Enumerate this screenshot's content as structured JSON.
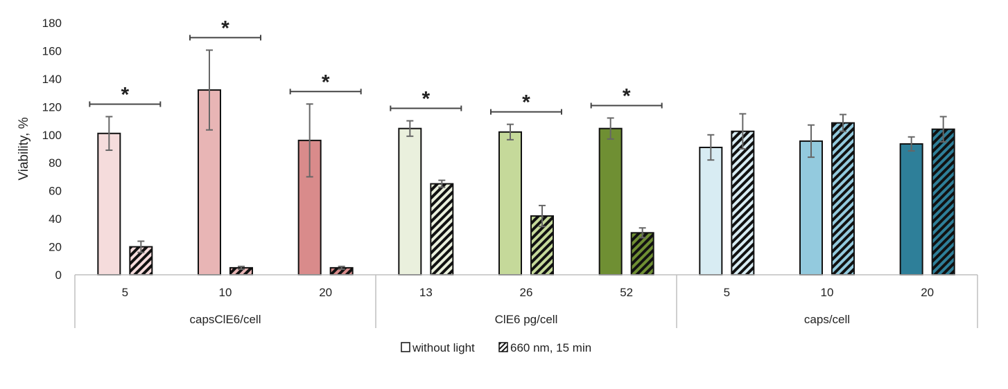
{
  "chart_data": {
    "type": "bar",
    "ylabel": "Viability, %",
    "xlabel": "",
    "ylim": [
      0,
      180
    ],
    "yticks": [
      0,
      20,
      40,
      60,
      80,
      100,
      120,
      140,
      160,
      180
    ],
    "grid": false,
    "legend_position": "bottom-center",
    "groups": [
      {
        "label": "capsClE6/cell",
        "categories": [
          "5",
          "10",
          "20"
        ]
      },
      {
        "label": "ClE6 pg/cell",
        "categories": [
          "13",
          "26",
          "52"
        ]
      },
      {
        "label": "caps/cell",
        "categories": [
          "5",
          "10",
          "20"
        ]
      }
    ],
    "series": [
      {
        "name": "without light",
        "pattern": "solid",
        "values": [
          101,
          132,
          96,
          104.5,
          102,
          104.5,
          91,
          95.5,
          93.5
        ],
        "errors": [
          12,
          28.5,
          26,
          5.5,
          5.5,
          7.5,
          9,
          11.5,
          5
        ]
      },
      {
        "name": "660 nm, 15 min",
        "pattern": "hatched",
        "values": [
          20,
          5,
          5,
          65,
          42,
          30,
          102.5,
          108.5,
          104
        ],
        "errors": [
          4,
          1,
          1,
          2.5,
          7.5,
          3.5,
          12.5,
          6,
          9
        ]
      }
    ],
    "colors": [
      "#f5dcdc",
      "#e8b5b5",
      "#d98b8b",
      "#eaf0dd",
      "#c5d99a",
      "#6f8f33",
      "#d8ecf3",
      "#93cade",
      "#2e7f99"
    ],
    "significance": [
      {
        "category_index": 0,
        "marker": "*"
      },
      {
        "category_index": 1,
        "marker": "*"
      },
      {
        "category_index": 2,
        "marker": "*"
      },
      {
        "category_index": 3,
        "marker": "*"
      },
      {
        "category_index": 4,
        "marker": "*"
      },
      {
        "category_index": 5,
        "marker": "*"
      }
    ]
  }
}
